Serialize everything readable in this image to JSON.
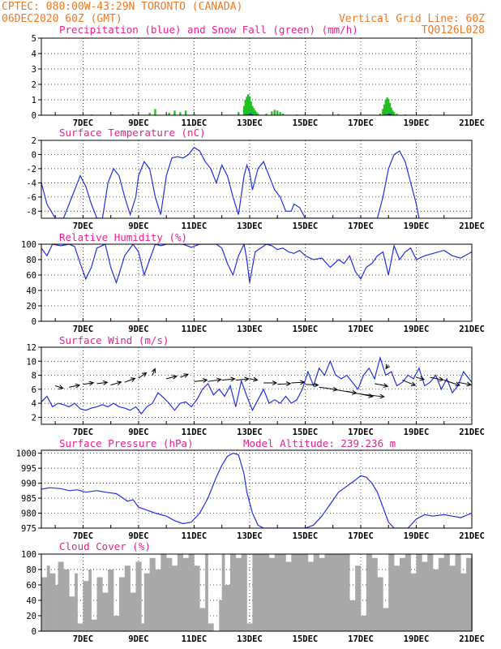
{
  "header": {
    "line1": "CPTEC:  080:00W-43:29N  TORONTO (CANADA)",
    "line2": "06DEC2020 60Z (GMT)",
    "grid_note": "Vertical Grid Line: 60Z",
    "code": "TQ0126L028"
  },
  "colors": {
    "header": "#f07820",
    "title": "#e8208c",
    "line": "#2030e0",
    "snow": "#20c020",
    "cloud": "#a8a8a8",
    "arrow": "#000000"
  },
  "x_axis": {
    "range": [
      5.5,
      21.0
    ],
    "ticks": [
      {
        "day": 7,
        "label": "7DEC"
      },
      {
        "day": 9,
        "label": "9DEC"
      },
      {
        "day": 11,
        "label": "11DEC"
      },
      {
        "day": 13,
        "label": "13DEC"
      },
      {
        "day": 15,
        "label": "15DEC"
      },
      {
        "day": 17,
        "label": "17DEC"
      },
      {
        "day": 19,
        "label": "19DEC"
      },
      {
        "day": 21,
        "label": "21DEC"
      }
    ]
  },
  "chart_data": [
    {
      "id": "precip",
      "type": "bar",
      "title": "Precipitation (blue) and Snow Fall (green) (mm/h)",
      "ylim": [
        0,
        5
      ],
      "yticks": [
        0,
        1,
        2,
        3,
        4,
        5
      ],
      "series": [
        {
          "name": "Precipitation",
          "x": [
            12.9,
            13.0,
            13.05,
            13.1,
            17.9,
            18.0,
            18.05,
            18.1
          ],
          "values": [
            0.05,
            0.1,
            0.1,
            0.05,
            0.05,
            0.1,
            0.1,
            0.05
          ]
        },
        {
          "name": "Snow Fall",
          "x": [
            6.9,
            7.3,
            8.0,
            8.4,
            8.8,
            9.4,
            9.6,
            10.1,
            10.3,
            10.5,
            10.7,
            11.0,
            12.6,
            12.8,
            12.85,
            12.9,
            12.95,
            13.0,
            13.05,
            13.1,
            13.15,
            13.2,
            13.25,
            13.3,
            13.6,
            13.8,
            13.9,
            14.0,
            14.1,
            14.2,
            14.7,
            15.5,
            16.2,
            16.9,
            17.7,
            17.8,
            17.85,
            17.9,
            17.95,
            18.0,
            18.05,
            18.1,
            18.15,
            18.2,
            18.3,
            18.6,
            19.5,
            20.5
          ],
          "values": [
            0.05,
            0.05,
            0.05,
            0.05,
            0.08,
            0.15,
            0.4,
            0.15,
            0.3,
            0.2,
            0.3,
            0.1,
            0.2,
            0.6,
            1.0,
            1.2,
            1.35,
            1.2,
            0.9,
            0.6,
            0.45,
            0.3,
            0.2,
            0.1,
            0.1,
            0.25,
            0.35,
            0.3,
            0.2,
            0.1,
            0.05,
            0.05,
            0.08,
            0.05,
            0.1,
            0.4,
            0.7,
            1.0,
            1.15,
            1.05,
            0.8,
            0.5,
            0.3,
            0.2,
            0.1,
            0.05,
            0.05,
            0.03
          ]
        }
      ]
    },
    {
      "id": "temp",
      "type": "line",
      "title": "Surface Temperature (nC)",
      "ylim": [
        -9,
        2
      ],
      "yticks": [
        -8,
        -6,
        -4,
        -2,
        0,
        2
      ],
      "x": [
        5.5,
        5.7,
        6.0,
        6.3,
        6.6,
        6.9,
        7.1,
        7.3,
        7.5,
        7.7,
        7.9,
        8.1,
        8.3,
        8.5,
        8.7,
        8.9,
        9.0,
        9.2,
        9.4,
        9.6,
        9.8,
        10.0,
        10.2,
        10.4,
        10.6,
        10.8,
        11.0,
        11.2,
        11.4,
        11.6,
        11.8,
        12.0,
        12.2,
        12.4,
        12.6,
        12.8,
        12.9,
        13.0,
        13.1,
        13.3,
        13.5,
        13.7,
        13.9,
        14.1,
        14.3,
        14.5,
        14.6,
        14.8,
        15.0,
        17.6,
        17.8,
        18.0,
        18.2,
        18.4,
        18.6,
        18.8,
        19.0,
        19.1
      ],
      "values": [
        -4,
        -7,
        -9,
        -9,
        -6,
        -3,
        -4.5,
        -7,
        -9,
        -9,
        -4,
        -2,
        -3,
        -6,
        -8.5,
        -6,
        -3,
        -1,
        -2,
        -6,
        -8.5,
        -3,
        -0.5,
        -0.3,
        -0.5,
        0,
        1,
        0.5,
        -1,
        -2,
        -4,
        -1.5,
        -3,
        -6,
        -8.5,
        -3,
        -1.5,
        -2.5,
        -5,
        -2,
        -1,
        -3,
        -5,
        -6,
        -8,
        -8,
        -7,
        -7.5,
        -9,
        -9,
        -6,
        -2,
        0,
        0.5,
        -1,
        -4,
        -7,
        -9
      ]
    },
    {
      "id": "rh",
      "type": "line",
      "title": "Relative Humidity (%)",
      "ylim": [
        0,
        100
      ],
      "yticks": [
        0,
        20,
        40,
        60,
        80,
        100
      ],
      "x": [
        5.5,
        5.7,
        5.9,
        6.2,
        6.5,
        6.7,
        6.9,
        7.1,
        7.3,
        7.5,
        7.8,
        8.0,
        8.2,
        8.5,
        8.8,
        9.0,
        9.2,
        9.4,
        9.6,
        9.8,
        10.0,
        10.3,
        10.6,
        10.9,
        11.2,
        11.5,
        11.8,
        12.0,
        12.2,
        12.4,
        12.6,
        12.8,
        12.9,
        13.0,
        13.2,
        13.4,
        13.6,
        13.8,
        14.0,
        14.2,
        14.4,
        14.6,
        14.8,
        15.0,
        15.3,
        15.6,
        15.9,
        16.2,
        16.4,
        16.6,
        16.8,
        17.0,
        17.2,
        17.4,
        17.6,
        17.8,
        18.0,
        18.2,
        18.4,
        18.6,
        18.8,
        19.0,
        19.3,
        19.6,
        20.0,
        20.3,
        20.6,
        21.0
      ],
      "values": [
        95,
        85,
        100,
        98,
        100,
        97,
        75,
        55,
        70,
        95,
        100,
        70,
        50,
        85,
        100,
        90,
        60,
        80,
        100,
        98,
        100,
        100,
        100,
        96,
        100,
        100,
        100,
        95,
        75,
        60,
        85,
        100,
        80,
        50,
        90,
        95,
        100,
        98,
        93,
        95,
        90,
        88,
        92,
        85,
        80,
        82,
        70,
        80,
        75,
        85,
        65,
        55,
        70,
        75,
        85,
        90,
        60,
        98,
        80,
        90,
        95,
        80,
        85,
        88,
        92,
        85,
        82,
        90
      ]
    },
    {
      "id": "wind",
      "type": "line",
      "title": "Surface Wind (m/s)",
      "ylim": [
        1,
        12
      ],
      "yticks": [
        2,
        4,
        6,
        8,
        10,
        12
      ],
      "x": [
        5.5,
        5.7,
        5.9,
        6.1,
        6.3,
        6.5,
        6.7,
        6.9,
        7.1,
        7.3,
        7.5,
        7.7,
        7.9,
        8.1,
        8.3,
        8.5,
        8.7,
        8.9,
        9.1,
        9.3,
        9.5,
        9.7,
        9.9,
        10.1,
        10.3,
        10.5,
        10.7,
        10.9,
        11.1,
        11.3,
        11.5,
        11.7,
        11.9,
        12.1,
        12.3,
        12.5,
        12.7,
        12.9,
        13.1,
        13.3,
        13.5,
        13.7,
        13.9,
        14.1,
        14.3,
        14.5,
        14.7,
        14.9,
        15.1,
        15.3,
        15.5,
        15.7,
        15.9,
        16.1,
        16.3,
        16.5,
        16.7,
        16.9,
        17.1,
        17.3,
        17.5,
        17.7,
        17.9,
        18.1,
        18.3,
        18.5,
        18.7,
        18.9,
        19.1,
        19.3,
        19.5,
        19.7,
        19.9,
        20.1,
        20.3,
        20.5,
        20.7,
        21.0
      ],
      "values": [
        4.2,
        5.0,
        3.5,
        4.0,
        3.8,
        3.5,
        4.0,
        3.2,
        3.0,
        3.3,
        3.5,
        3.8,
        3.5,
        4.0,
        3.5,
        3.3,
        3.0,
        3.5,
        2.5,
        3.5,
        4.0,
        5.5,
        4.8,
        4.0,
        3.0,
        4.0,
        4.2,
        3.5,
        4.5,
        6.0,
        6.8,
        5.2,
        6.0,
        5.0,
        6.5,
        3.5,
        7.2,
        5.0,
        3.0,
        4.5,
        6.0,
        4.0,
        4.5,
        4.0,
        5.0,
        4.0,
        4.5,
        6.0,
        8.5,
        6.5,
        9.0,
        8.0,
        10.0,
        8.0,
        7.5,
        8.0,
        7.0,
        6.0,
        8.0,
        9.0,
        7.5,
        10.5,
        8.0,
        8.5,
        6.5,
        7.0,
        8.0,
        7.5,
        9.0,
        6.5,
        7.0,
        8.0,
        6.0,
        7.5,
        5.5,
        6.5,
        8.5,
        7.0
      ]
    },
    {
      "id": "pres",
      "type": "line",
      "title": "Surface Pressure (hPa)",
      "annotation": "Model Altitude: 239.236 m",
      "ylim": [
        975,
        1001
      ],
      "yticks": [
        975,
        980,
        985,
        990,
        995,
        1000
      ],
      "x": [
        5.5,
        5.8,
        6.2,
        6.5,
        6.8,
        7.1,
        7.5,
        7.8,
        8.2,
        8.6,
        8.8,
        9.0,
        9.3,
        9.6,
        10.0,
        10.3,
        10.6,
        10.9,
        11.2,
        11.5,
        11.8,
        12.0,
        12.2,
        12.4,
        12.6,
        12.8,
        12.9,
        13.1,
        13.3,
        13.5,
        15.0,
        15.3,
        15.6,
        15.9,
        16.2,
        16.5,
        16.8,
        17.0,
        17.2,
        17.4,
        17.6,
        17.8,
        18.0,
        18.2,
        18.4,
        18.7,
        19.0,
        19.3,
        19.6,
        20.0,
        20.3,
        20.6,
        21.0
      ],
      "values": [
        988,
        988.5,
        988.2,
        987.5,
        987.8,
        987,
        987.5,
        987,
        986.5,
        984,
        984.5,
        982,
        981,
        980,
        979,
        977.5,
        976.5,
        977,
        980,
        985,
        992,
        996,
        999,
        1000,
        999.5,
        993,
        987,
        980,
        976,
        975,
        975,
        976,
        979,
        983,
        987,
        989,
        991,
        992.5,
        992,
        990,
        987,
        982,
        977,
        975,
        975,
        975,
        978,
        979.5,
        979,
        979.5,
        979,
        978.5,
        980
      ]
    },
    {
      "id": "cloud",
      "type": "area",
      "title": "Cloud Cover (%)",
      "ylim": [
        0,
        100
      ],
      "yticks": [
        0,
        20,
        40,
        60,
        80,
        100
      ],
      "x": [
        5.5,
        5.7,
        5.8,
        6.0,
        6.1,
        6.3,
        6.5,
        6.7,
        6.8,
        7.0,
        7.2,
        7.3,
        7.5,
        7.7,
        7.9,
        8.1,
        8.3,
        8.5,
        8.7,
        8.9,
        9.1,
        9.2,
        9.4,
        9.6,
        9.8,
        10.0,
        10.2,
        10.4,
        10.6,
        10.8,
        11.0,
        11.2,
        11.4,
        11.5,
        11.7,
        11.9,
        12.0,
        12.1,
        12.3,
        12.5,
        12.7,
        12.9,
        13.1,
        13.3,
        13.5,
        13.7,
        13.9,
        14.1,
        14.3,
        14.5,
        14.7,
        14.9,
        15.1,
        15.3,
        15.5,
        15.7,
        15.9,
        16.1,
        16.3,
        16.5,
        16.6,
        16.8,
        17.0,
        17.2,
        17.4,
        17.6,
        17.8,
        18.0,
        18.2,
        18.4,
        18.6,
        18.8,
        19.0,
        19.2,
        19.4,
        19.6,
        19.8,
        20.0,
        20.2,
        20.4,
        20.6,
        20.8,
        21.0
      ],
      "values": [
        70,
        85,
        75,
        60,
        90,
        80,
        45,
        75,
        10,
        65,
        80,
        15,
        70,
        50,
        80,
        20,
        70,
        85,
        50,
        90,
        10,
        75,
        95,
        80,
        100,
        95,
        85,
        100,
        95,
        100,
        85,
        30,
        100,
        10,
        0,
        40,
        100,
        60,
        100,
        95,
        100,
        10,
        100,
        100,
        100,
        95,
        100,
        100,
        90,
        100,
        100,
        100,
        90,
        100,
        95,
        100,
        100,
        100,
        100,
        100,
        40,
        85,
        20,
        100,
        95,
        70,
        30,
        100,
        85,
        95,
        100,
        75,
        100,
        90,
        100,
        80,
        95,
        100,
        85,
        100,
        75,
        95,
        100
      ]
    }
  ],
  "wind_vectors": {
    "x": [
      6.0,
      6.5,
      7.0,
      7.5,
      8.0,
      8.5,
      9.0,
      9.5,
      10.0,
      10.5,
      11.0,
      11.5,
      12.0,
      12.5,
      13.0,
      13.5,
      14.0,
      14.5,
      15.0,
      15.5,
      16.0,
      16.5,
      17.0,
      17.5,
      18.0,
      18.5,
      19.0,
      19.5,
      20.0,
      20.5
    ],
    "y": [
      6.5,
      6.3,
      6.7,
      6.8,
      6.6,
      7.0,
      7.6,
      8.0,
      7.5,
      7.7,
      7.1,
      7.1,
      7.3,
      7.3,
      7.5,
      6.9,
      6.7,
      6.9,
      6.7,
      6.3,
      6.0,
      5.7,
      5.3,
      6.8,
      9.5,
      7.3,
      7.7,
      7.7,
      7.3,
      7.0
    ],
    "u": [
      3,
      4,
      4,
      4,
      4,
      4,
      3,
      1,
      4,
      3,
      5,
      5,
      5,
      5,
      3,
      5,
      5,
      5,
      5,
      7,
      9,
      10,
      9,
      5,
      -1,
      5,
      3,
      5,
      6,
      5
    ],
    "v": [
      -1.0,
      0.8,
      0.6,
      0.5,
      1.2,
      1.5,
      2.0,
      2.5,
      1.0,
      1.2,
      0.6,
      0.8,
      0.5,
      0.5,
      -0.5,
      0.0,
      0.3,
      0.3,
      -0.3,
      -1.0,
      -1.5,
      -2.0,
      -1.0,
      -1.0,
      -1.5,
      -2.0,
      -0.8,
      -1.0,
      -2.0,
      -1.0
    ]
  }
}
